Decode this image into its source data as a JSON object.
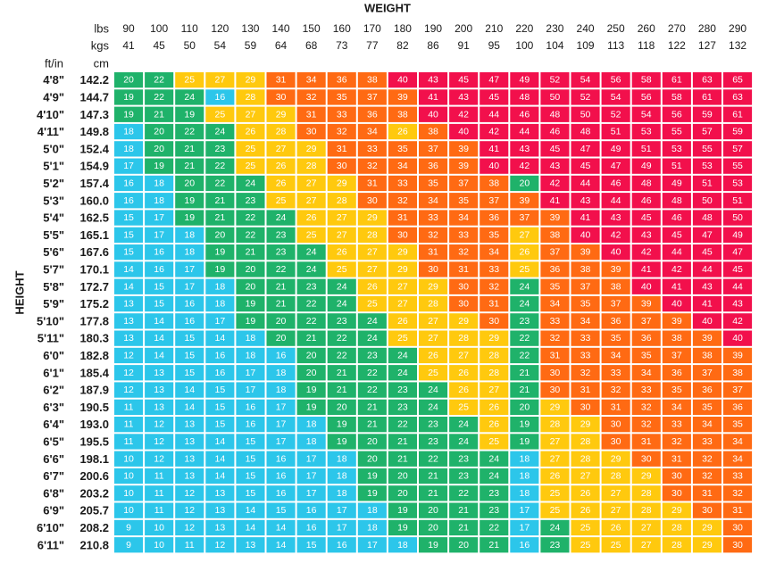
{
  "chart_data": {
    "type": "heatmap",
    "title": "WEIGHT",
    "ylabel": "HEIGHT",
    "column_header_units": {
      "lbs": "lbs",
      "kgs": "kgs"
    },
    "row_header_units": {
      "ft_in": "ft/in",
      "cm": "cm"
    },
    "weights_lbs": [
      "90",
      "100",
      "110",
      "120",
      "130",
      "140",
      "150",
      "160",
      "170",
      "180",
      "190",
      "200",
      "210",
      "220",
      "230",
      "240",
      "250",
      "260",
      "270",
      "280",
      "290"
    ],
    "weights_kgs": [
      "41",
      "45",
      "50",
      "54",
      "59",
      "64",
      "68",
      "73",
      "77",
      "82",
      "86",
      "91",
      "95",
      "100",
      "104",
      "109",
      "113",
      "118",
      "122",
      "127",
      "132"
    ],
    "heights_ftin": [
      "4'8\"",
      "4'9\"",
      "4'10\"",
      "4'11\"",
      "5'0\"",
      "5'1\"",
      "5'2\"",
      "5'3\"",
      "5'4\"",
      "5'5\"",
      "5'6\"",
      "5'7\"",
      "5'8\"",
      "5'9\"",
      "5'10\"",
      "5'11\"",
      "6'0\"",
      "6'1\"",
      "6'2\"",
      "6'3\"",
      "6'4\"",
      "6'5\"",
      "6'6\"",
      "6'7\"",
      "6'8\"",
      "6'9\"",
      "6'10\"",
      "6'11\""
    ],
    "heights_cm": [
      "142.2",
      "144.7",
      "147.3",
      "149.8",
      "152.4",
      "154.9",
      "157.4",
      "160.0",
      "162.5",
      "165.1",
      "167.6",
      "170.1",
      "172.7",
      "175.2",
      "177.8",
      "180.3",
      "182.8",
      "185.4",
      "187.9",
      "190.5",
      "193.0",
      "195.5",
      "198.1",
      "200.6",
      "203.2",
      "205.7",
      "208.2",
      "210.8"
    ],
    "values": [
      [
        20,
        22,
        25,
        27,
        29,
        31,
        34,
        36,
        38,
        40,
        43,
        45,
        47,
        49,
        52,
        54,
        56,
        58,
        61,
        63,
        65
      ],
      [
        19,
        22,
        24,
        16,
        28,
        30,
        32,
        35,
        37,
        39,
        41,
        43,
        45,
        48,
        50,
        52,
        54,
        56,
        58,
        61,
        63
      ],
      [
        19,
        21,
        19,
        25,
        27,
        29,
        31,
        33,
        36,
        38,
        40,
        42,
        44,
        46,
        48,
        50,
        52,
        54,
        56,
        59,
        61
      ],
      [
        18,
        20,
        22,
        24,
        26,
        28,
        30,
        32,
        34,
        26,
        38,
        40,
        42,
        44,
        46,
        48,
        51,
        53,
        55,
        57,
        59
      ],
      [
        18,
        20,
        21,
        23,
        25,
        27,
        29,
        31,
        33,
        35,
        37,
        39,
        41,
        43,
        45,
        47,
        49,
        51,
        53,
        55,
        57
      ],
      [
        17,
        19,
        21,
        22,
        25,
        26,
        28,
        30,
        32,
        34,
        36,
        39,
        40,
        42,
        43,
        45,
        47,
        49,
        51,
        53,
        55
      ],
      [
        16,
        18,
        20,
        22,
        24,
        26,
        27,
        29,
        31,
        33,
        35,
        37,
        38,
        20,
        42,
        44,
        46,
        48,
        49,
        51,
        53
      ],
      [
        16,
        18,
        19,
        21,
        23,
        25,
        27,
        28,
        30,
        32,
        34,
        35,
        37,
        39,
        41,
        43,
        44,
        46,
        48,
        50,
        51
      ],
      [
        15,
        17,
        19,
        21,
        22,
        24,
        26,
        27,
        29,
        31,
        33,
        34,
        36,
        37,
        39,
        41,
        43,
        45,
        46,
        48,
        50
      ],
      [
        15,
        17,
        18,
        20,
        22,
        23,
        25,
        27,
        28,
        30,
        32,
        33,
        35,
        27,
        38,
        40,
        42,
        43,
        45,
        47,
        49
      ],
      [
        15,
        16,
        18,
        19,
        21,
        23,
        24,
        26,
        27,
        29,
        31,
        32,
        34,
        26,
        37,
        39,
        40,
        42,
        44,
        45,
        47
      ],
      [
        14,
        16,
        17,
        19,
        20,
        22,
        24,
        25,
        27,
        29,
        30,
        31,
        33,
        25,
        36,
        38,
        39,
        41,
        42,
        44,
        45
      ],
      [
        14,
        15,
        17,
        18,
        20,
        21,
        23,
        24,
        26,
        27,
        29,
        30,
        32,
        24,
        35,
        37,
        38,
        40,
        41,
        43,
        44
      ],
      [
        13,
        15,
        16,
        18,
        19,
        21,
        22,
        24,
        25,
        27,
        28,
        30,
        31,
        24,
        34,
        35,
        37,
        39,
        40,
        41,
        43
      ],
      [
        13,
        14,
        16,
        17,
        19,
        20,
        22,
        23,
        24,
        26,
        27,
        29,
        30,
        23,
        33,
        34,
        36,
        37,
        39,
        40,
        42
      ],
      [
        13,
        14,
        15,
        14,
        18,
        20,
        21,
        22,
        24,
        25,
        27,
        28,
        29,
        22,
        32,
        33,
        35,
        36,
        38,
        39,
        40
      ],
      [
        12,
        14,
        15,
        16,
        18,
        16,
        20,
        22,
        23,
        24,
        26,
        27,
        28,
        22,
        31,
        33,
        34,
        35,
        37,
        38,
        39
      ],
      [
        12,
        13,
        15,
        16,
        17,
        18,
        20,
        21,
        22,
        24,
        25,
        26,
        28,
        21,
        30,
        32,
        33,
        34,
        36,
        37,
        38
      ],
      [
        12,
        13,
        14,
        15,
        17,
        18,
        19,
        21,
        22,
        23,
        24,
        26,
        27,
        21,
        30,
        31,
        32,
        33,
        35,
        36,
        37
      ],
      [
        11,
        13,
        14,
        15,
        16,
        17,
        19,
        20,
        21,
        23,
        24,
        25,
        26,
        20,
        29,
        30,
        31,
        32,
        34,
        35,
        36
      ],
      [
        11,
        12,
        13,
        15,
        16,
        17,
        18,
        19,
        21,
        22,
        23,
        24,
        26,
        19,
        28,
        29,
        30,
        32,
        33,
        34,
        35
      ],
      [
        11,
        12,
        13,
        14,
        15,
        17,
        18,
        19,
        20,
        21,
        23,
        24,
        25,
        19,
        27,
        28,
        30,
        31,
        32,
        33,
        34
      ],
      [
        10,
        12,
        13,
        14,
        15,
        16,
        17,
        18,
        20,
        21,
        22,
        23,
        24,
        18,
        27,
        28,
        29,
        30,
        31,
        32,
        34
      ],
      [
        10,
        11,
        13,
        14,
        15,
        16,
        17,
        18,
        19,
        20,
        21,
        23,
        24,
        18,
        26,
        27,
        28,
        29,
        30,
        32,
        33
      ],
      [
        10,
        11,
        12,
        13,
        15,
        16,
        17,
        18,
        19,
        20,
        21,
        22,
        23,
        18,
        25,
        26,
        27,
        28,
        30,
        31,
        32
      ],
      [
        10,
        11,
        12,
        13,
        14,
        15,
        16,
        17,
        18,
        19,
        20,
        21,
        23,
        17,
        25,
        26,
        27,
        28,
        29,
        30,
        31
      ],
      [
        9,
        10,
        12,
        13,
        14,
        14,
        16,
        17,
        18,
        19,
        20,
        21,
        22,
        17,
        24,
        25,
        26,
        27,
        28,
        29,
        30
      ],
      [
        9,
        10,
        11,
        12,
        13,
        14,
        15,
        16,
        17,
        18,
        19,
        20,
        21,
        16,
        23,
        25,
        25,
        27,
        28,
        29,
        30
      ]
    ],
    "category_colors": {
      "underweight": "#2cc6ea",
      "normal": "#1fb26a",
      "overweight": "#ffc90e",
      "obese": "#ff6a13",
      "extremely_obese": "#f2104c"
    }
  }
}
